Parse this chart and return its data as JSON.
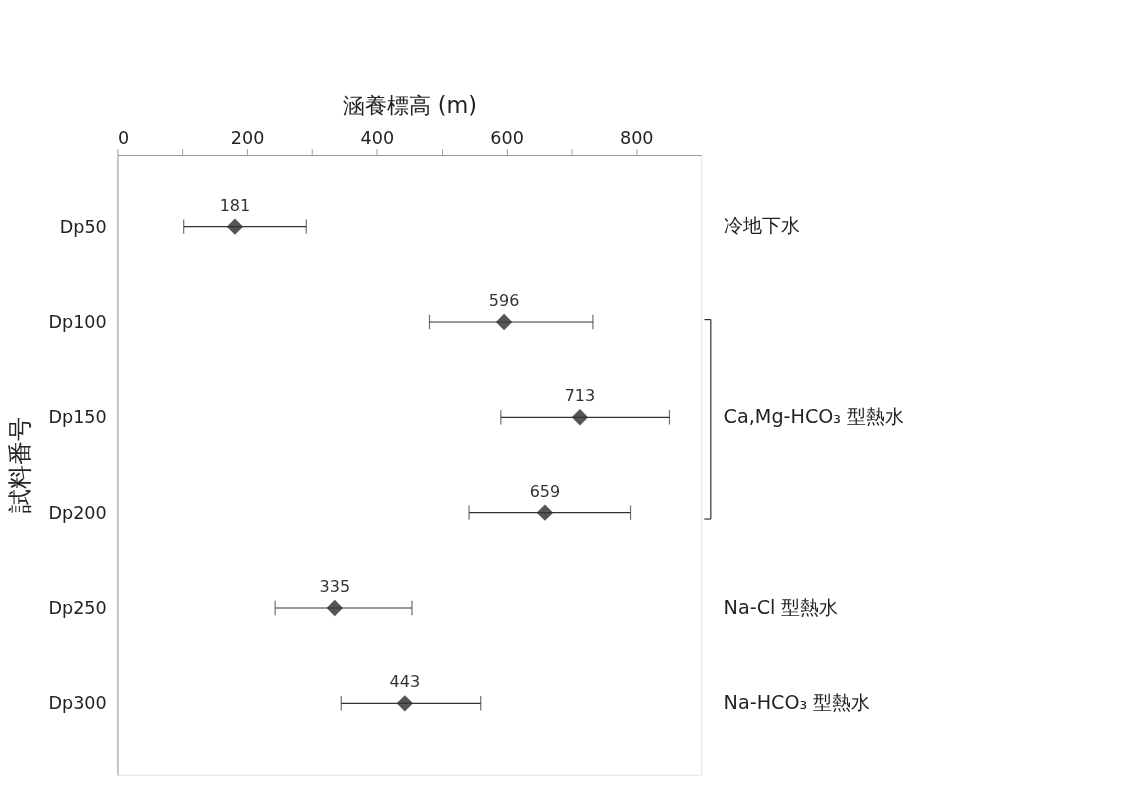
{
  "chart_data": {
    "type": "scatter",
    "orientation": "horizontal",
    "xlabel": "涵養標高 (m)",
    "ylabel": "試料番号",
    "categories": [
      "Dp50",
      "Dp100",
      "Dp150",
      "Dp200",
      "Dp250",
      "Dp300"
    ],
    "series": [
      {
        "color": "#555555",
        "values": [
          181,
          596,
          713,
          659,
          335,
          443
        ],
        "errors": [
          [
            102,
            291
          ],
          [
            481,
            733
          ],
          [
            591,
            851
          ],
          [
            542,
            791
          ],
          [
            243,
            454
          ],
          [
            345,
            560
          ]
        ]
      }
    ],
    "data_labels": true,
    "marker": "diamond",
    "grid": false,
    "xlim": [
      0,
      900
    ],
    "xticks": [
      0,
      {
        "value": 100,
        "label": null
      },
      200,
      {
        "value": 300,
        "label": null
      },
      400,
      {
        "value": 500,
        "label": null
      },
      600,
      {
        "value": 700,
        "label": null
      },
      800
    ],
    "annotations": [
      "冷地下水",
      "Ca,Mg-HCO₃ 型熱水",
      "Na-Cl 型熱水",
      "Na-HCO₃ 型熱水"
    ]
  }
}
